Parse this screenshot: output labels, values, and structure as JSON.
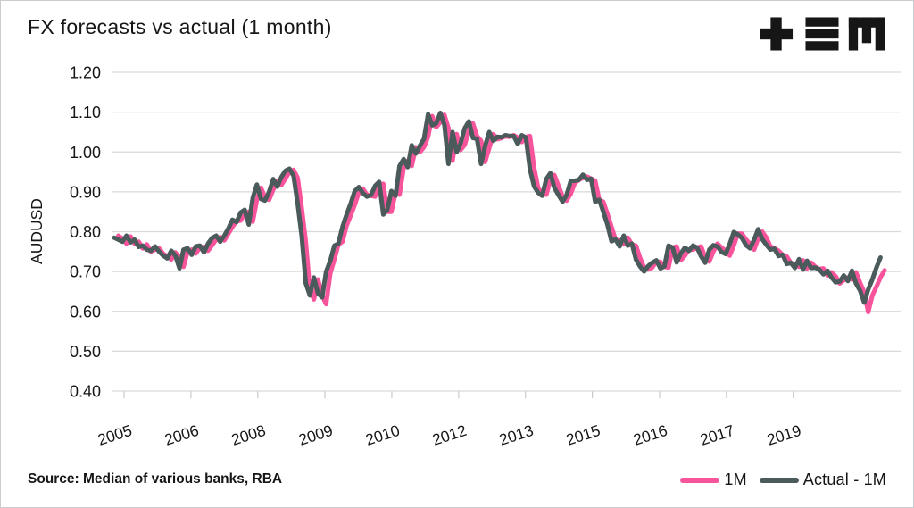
{
  "header": {
    "title": "FX forecasts vs actual (1 month)"
  },
  "logo": {
    "icon": "plus-triplebar-m-logo",
    "color": "#161616"
  },
  "footer": {
    "source": "Source: Median of various banks, RBA"
  },
  "chart_data": {
    "type": "line",
    "title": "FX forecasts vs actual (1 month)",
    "xlabel": "",
    "ylabel": "AUDUSD",
    "ylim": [
      0.4,
      1.2
    ],
    "grid": true,
    "gridline_color": "#d9d9d9",
    "tick_color": "#c9c9c9",
    "text_color": "#161616",
    "legend_position": "bottom-right",
    "y_ticks": [
      "1.20",
      "1.10",
      "1.00",
      "0.90",
      "0.80",
      "0.70",
      "0.60",
      "0.50",
      "0.40"
    ],
    "x_ticks": [
      {
        "label": "2005",
        "slot": 2.4
      },
      {
        "label": "2006",
        "slot": 18.8
      },
      {
        "label": "2008",
        "slot": 35.2
      },
      {
        "label": "2009",
        "slot": 51.7
      },
      {
        "label": "2010",
        "slot": 68.1
      },
      {
        "label": "2012",
        "slot": 84.5
      },
      {
        "label": "2013",
        "slot": 100.9
      },
      {
        "label": "2015",
        "slot": 117.3
      },
      {
        "label": "2016",
        "slot": 133.8
      },
      {
        "label": "2017",
        "slot": 150.2
      },
      {
        "label": "2019",
        "slot": 166.6
      }
    ],
    "x_unit": "month",
    "total_slots": 190,
    "series": [
      {
        "name": "1M",
        "color": "#f8549b",
        "start_slot": 1,
        "values": [
          0.79,
          0.783,
          0.77,
          0.788,
          0.77,
          0.775,
          0.758,
          0.768,
          0.75,
          0.755,
          0.758,
          0.745,
          0.738,
          0.73,
          0.748,
          0.735,
          0.712,
          0.75,
          0.755,
          0.745,
          0.76,
          0.762,
          0.752,
          0.766,
          0.78,
          0.786,
          0.778,
          0.795,
          0.812,
          0.826,
          0.828,
          0.845,
          0.85,
          0.825,
          0.88,
          0.91,
          0.886,
          0.88,
          0.905,
          0.928,
          0.917,
          0.933,
          0.95,
          0.955,
          0.935,
          0.86,
          0.775,
          0.655,
          0.63,
          0.68,
          0.64,
          0.618,
          0.695,
          0.73,
          0.768,
          0.775,
          0.815,
          0.84,
          0.867,
          0.898,
          0.908,
          0.893,
          0.89,
          0.888,
          0.918,
          0.92,
          0.85,
          0.85,
          0.898,
          0.893,
          0.96,
          0.978,
          0.965,
          1.012,
          1.0,
          1.012,
          1.038,
          1.09,
          1.062,
          1.075,
          1.093,
          1.06,
          0.978,
          1.045,
          1.005,
          1.018,
          1.055,
          1.072,
          1.04,
          1.028,
          0.975,
          1.01,
          1.045,
          1.032,
          1.035,
          1.04,
          1.038,
          1.042,
          1.036,
          1.025,
          1.038,
          1.04,
          0.962,
          0.91,
          0.894,
          0.893,
          0.928,
          0.942,
          0.915,
          0.888,
          0.878,
          0.895,
          0.922,
          0.93,
          0.935,
          0.938,
          0.933,
          0.928,
          0.88,
          0.875,
          0.845,
          0.812,
          0.78,
          0.778,
          0.768,
          0.785,
          0.768,
          0.765,
          0.735,
          0.71,
          0.705,
          0.71,
          0.725,
          0.724,
          0.712,
          0.71,
          0.76,
          0.763,
          0.728,
          0.74,
          0.755,
          0.755,
          0.76,
          0.763,
          0.735,
          0.725,
          0.75,
          0.77,
          0.76,
          0.752,
          0.74,
          0.765,
          0.795,
          0.795,
          0.78,
          0.77,
          0.755,
          0.783,
          0.8,
          0.785,
          0.763,
          0.758,
          0.752,
          0.742,
          0.738,
          0.722,
          0.718,
          0.712,
          0.728,
          0.708,
          0.722,
          0.712,
          0.706,
          0.708,
          0.69,
          0.698,
          0.688,
          0.67,
          0.678,
          0.685,
          0.68,
          0.698,
          0.672,
          0.648,
          0.598,
          0.64,
          0.662,
          0.685,
          0.703
        ]
      },
      {
        "name": "Actual - 1M",
        "color": "#4b5a5a",
        "start_slot": 0,
        "values": [
          0.785,
          0.78,
          0.775,
          0.79,
          0.773,
          0.78,
          0.762,
          0.765,
          0.755,
          0.752,
          0.763,
          0.75,
          0.74,
          0.733,
          0.752,
          0.74,
          0.708,
          0.755,
          0.758,
          0.742,
          0.763,
          0.765,
          0.748,
          0.77,
          0.784,
          0.79,
          0.775,
          0.79,
          0.808,
          0.83,
          0.824,
          0.848,
          0.855,
          0.818,
          0.885,
          0.918,
          0.882,
          0.878,
          0.9,
          0.932,
          0.913,
          0.937,
          0.953,
          0.958,
          0.94,
          0.87,
          0.79,
          0.67,
          0.64,
          0.685,
          0.645,
          0.635,
          0.7,
          0.727,
          0.765,
          0.77,
          0.812,
          0.843,
          0.87,
          0.902,
          0.912,
          0.897,
          0.888,
          0.892,
          0.915,
          0.925,
          0.843,
          0.855,
          0.902,
          0.89,
          0.965,
          0.982,
          0.962,
          1.017,
          0.996,
          1.016,
          1.033,
          1.095,
          1.067,
          1.072,
          1.098,
          1.068,
          0.97,
          1.05,
          1.0,
          1.022,
          1.06,
          1.077,
          1.035,
          1.033,
          0.97,
          1.015,
          1.05,
          1.028,
          1.038,
          1.037,
          1.042,
          1.04,
          1.04,
          1.02,
          1.042,
          1.036,
          0.957,
          0.914,
          0.898,
          0.89,
          0.932,
          0.947,
          0.91,
          0.892,
          0.875,
          0.892,
          0.927,
          0.928,
          0.93,
          0.943,
          0.93,
          0.933,
          0.875,
          0.88,
          0.85,
          0.818,
          0.776,
          0.781,
          0.763,
          0.79,
          0.765,
          0.77,
          0.73,
          0.713,
          0.7,
          0.714,
          0.722,
          0.728,
          0.708,
          0.713,
          0.765,
          0.76,
          0.723,
          0.745,
          0.76,
          0.752,
          0.765,
          0.76,
          0.738,
          0.722,
          0.755,
          0.766,
          0.763,
          0.749,
          0.744,
          0.769,
          0.799,
          0.793,
          0.784,
          0.766,
          0.758,
          0.78,
          0.806,
          0.781,
          0.767,
          0.755,
          0.757,
          0.739,
          0.742,
          0.719,
          0.722,
          0.709,
          0.731,
          0.705,
          0.727,
          0.709,
          0.71,
          0.705,
          0.693,
          0.702,
          0.685,
          0.673,
          0.675,
          0.69,
          0.676,
          0.702,
          0.67,
          0.652,
          0.622,
          0.655,
          0.68,
          0.71,
          0.735
        ]
      }
    ]
  }
}
